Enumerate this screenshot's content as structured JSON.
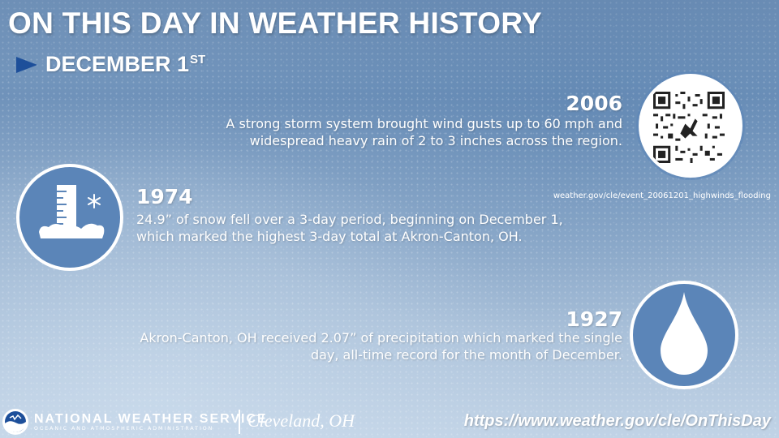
{
  "header": {
    "title": "ON THIS DAY IN WEATHER HISTORY",
    "date_main": "DECEMBER 1",
    "date_suffix": "ST",
    "arrow_icon": "play-arrow-icon",
    "arrow_color": "#1d4f9a"
  },
  "events": [
    {
      "year": "2006",
      "line1": "A strong storm system brought wind gusts up to 60 mph and",
      "line2": "widespread heavy rain of 2 to 3 inches across the region.",
      "icon": "qr-code-icon",
      "link": "weather.gov/cle/event_20061201_highwinds_flooding"
    },
    {
      "year": "1974",
      "line1": "24.9” of snow fell over a 3-day period, beginning on December 1,",
      "line2": "which marked the highest 3-day total at Akron-Canton, OH.",
      "icon": "snow-gauge-icon"
    },
    {
      "year": "1927",
      "line1": "Akron-Canton, OH received 2.07” of precipitation which marked the single",
      "line2": "day, all-time record for the month of December.",
      "icon": "raindrop-icon"
    }
  ],
  "footer": {
    "agency": "NATIONAL WEATHER SERVICE",
    "agency_sub": "OCEANIC AND ATMOSPHERIC ADMINISTRATION",
    "office": "Cleveland, OH",
    "url": "https://www.weather.gov/cle/OnThisDay",
    "logo_icon": "noaa-logo-icon"
  },
  "colors": {
    "circle_fill": "#5b85b8",
    "text": "#ffffff"
  }
}
